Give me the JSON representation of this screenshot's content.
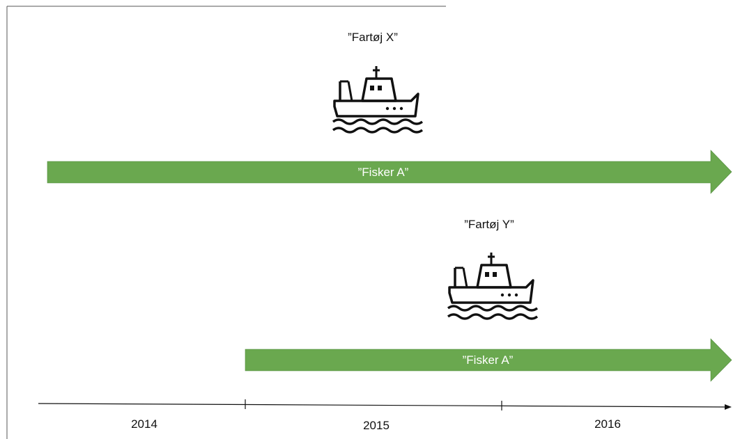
{
  "vessels": [
    {
      "label": "”Fartøj X”",
      "icon": "fishing-boat-icon"
    },
    {
      "label": "”Fartøj Y”",
      "icon": "fishing-boat-icon"
    }
  ],
  "bars": [
    {
      "label": "”Fisker A”",
      "start": 2014.0,
      "end": 2017.0,
      "color": "#6aa84f"
    },
    {
      "label": "”Fisker A”",
      "start": 2015.0,
      "end": 2017.0,
      "color": "#6aa84f"
    }
  ],
  "timeline": {
    "ticks": [
      2015,
      2016
    ],
    "year_labels": [
      "2014",
      "2015",
      "2016"
    ]
  }
}
